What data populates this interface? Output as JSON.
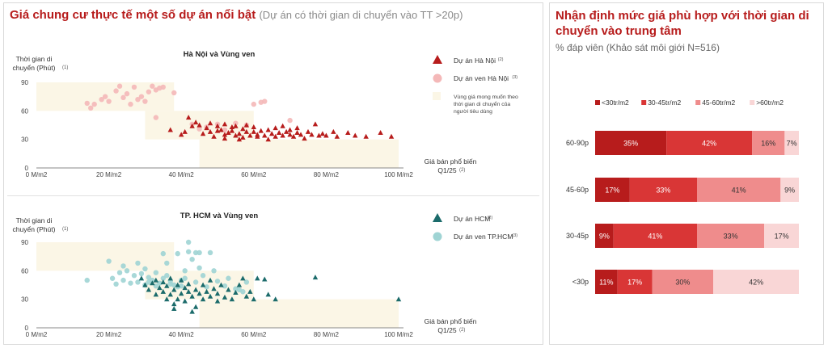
{
  "left": {
    "title": "Giá chung cư thực tế một số dự án nổi bật",
    "subtitle": "(Dự án có thời gian di chuyển vào TT >20p)"
  },
  "right": {
    "title": "Nhận định mức giá phù hợp với thời gian di chuyển vào trung tâm",
    "subtitle": "% đáp viên (Khảo sát môi giới N=516)"
  },
  "colors": {
    "hn_dark": "#b71c1c",
    "hn_light": "#f4b8b8",
    "hcm_dark": "#1b6b6b",
    "hcm_light": "#9fd4d4",
    "zone": "#fbf6e6",
    "seg1": "#b71c1c",
    "seg2": "#d93636",
    "seg3": "#ef8c8c",
    "seg4": "#f9d6d6"
  },
  "chart_data": [
    {
      "type": "scatter",
      "title": "Hà Nội và Vùng ven",
      "ylabel": "Thời gian di chuyển (Phút)",
      "ylabel_sup": "(1)",
      "xlabel": "Giá bán phổ biến Q1/25",
      "xlabel_sup": "(2)",
      "xlim": [
        0,
        100
      ],
      "ylim": [
        0,
        90
      ],
      "xticks": [
        0,
        20,
        40,
        60,
        80,
        100
      ],
      "xtick_labels": [
        "0 M/m2",
        "20 M/m2",
        "40 M/m2",
        "60 M/m2",
        "80 M/m2",
        "100 M/m2"
      ],
      "yticks": [
        0,
        30,
        60,
        90
      ],
      "zone_label": "Vùng giá mong muốn theo thời gian di chuyển của người tiêu dùng",
      "zones": [
        {
          "x": [
            0,
            38
          ],
          "y": [
            60,
            90
          ]
        },
        {
          "x": [
            30,
            60
          ],
          "y": [
            30,
            60
          ]
        },
        {
          "x": [
            45,
            100
          ],
          "y": [
            0,
            30
          ]
        }
      ],
      "series": [
        {
          "name": "Dự án Hà Nội",
          "sup": "(2)",
          "marker": "triangle",
          "points": [
            [
              37,
              40
            ],
            [
              40,
              35
            ],
            [
              41,
              38
            ],
            [
              42,
              53
            ],
            [
              43,
              44
            ],
            [
              44,
              48
            ],
            [
              45,
              45
            ],
            [
              46,
              36
            ],
            [
              47,
              42
            ],
            [
              48,
              38
            ],
            [
              48,
              47
            ],
            [
              49,
              33
            ],
            [
              50,
              44
            ],
            [
              50,
              39
            ],
            [
              51,
              40
            ],
            [
              52,
              35
            ],
            [
              52,
              46
            ],
            [
              53,
              37
            ],
            [
              54,
              39
            ],
            [
              54,
              43
            ],
            [
              55,
              34
            ],
            [
              55,
              44
            ],
            [
              56,
              36
            ],
            [
              57,
              41
            ],
            [
              57,
              32
            ],
            [
              58,
              45
            ],
            [
              58,
              38
            ],
            [
              59,
              34
            ],
            [
              60,
              38
            ],
            [
              60,
              43
            ],
            [
              61,
              35
            ],
            [
              61,
              33
            ],
            [
              62,
              39
            ],
            [
              63,
              34
            ],
            [
              64,
              40
            ],
            [
              64,
              30
            ],
            [
              65,
              36
            ],
            [
              66,
              42
            ],
            [
              66,
              33
            ],
            [
              67,
              37
            ],
            [
              68,
              44
            ],
            [
              68,
              34
            ],
            [
              69,
              38
            ],
            [
              70,
              35
            ],
            [
              70,
              40
            ],
            [
              71,
              33
            ],
            [
              72,
              37
            ],
            [
              72,
              42
            ],
            [
              73,
              35
            ],
            [
              74,
              31
            ],
            [
              75,
              38
            ],
            [
              76,
              35
            ],
            [
              77,
              46
            ],
            [
              78,
              34
            ],
            [
              79,
              36
            ],
            [
              80,
              34
            ],
            [
              82,
              38
            ],
            [
              83,
              33
            ],
            [
              86,
              37
            ],
            [
              88,
              34
            ],
            [
              91,
              33
            ],
            [
              95,
              37
            ],
            [
              98,
              33
            ],
            [
              52,
              31
            ],
            [
              56,
              30
            ]
          ]
        },
        {
          "name": "Dự án ven Hà Nội",
          "sup": "(3)",
          "marker": "circle",
          "points": [
            [
              14,
              68
            ],
            [
              15,
              63
            ],
            [
              16,
              67
            ],
            [
              18,
              72
            ],
            [
              19,
              75
            ],
            [
              20,
              70
            ],
            [
              22,
              81
            ],
            [
              23,
              86
            ],
            [
              24,
              74
            ],
            [
              25,
              78
            ],
            [
              26,
              67
            ],
            [
              27,
              85
            ],
            [
              28,
              72
            ],
            [
              29,
              75
            ],
            [
              30,
              70
            ],
            [
              31,
              80
            ],
            [
              32,
              86
            ],
            [
              33,
              82
            ],
            [
              34,
              84
            ],
            [
              35,
              85
            ],
            [
              38,
              79
            ],
            [
              60,
              67
            ],
            [
              62,
              69
            ],
            [
              63,
              70
            ],
            [
              70,
              50
            ],
            [
              43,
              46
            ],
            [
              45,
              41
            ],
            [
              47,
              43
            ],
            [
              50,
              46
            ],
            [
              55,
              47
            ],
            [
              58,
              45
            ],
            [
              33,
              53
            ],
            [
              52,
              40
            ]
          ]
        }
      ]
    },
    {
      "type": "scatter",
      "title": "TP. HCM và Vùng ven",
      "ylabel": "Thời gian di chuyển (Phút)",
      "ylabel_sup": "(1)",
      "xlabel": "Giá bán phổ biến Q1/25",
      "xlabel_sup": "(2)",
      "xlim": [
        0,
        100
      ],
      "ylim": [
        0,
        90
      ],
      "xticks": [
        0,
        20,
        40,
        60,
        80,
        100
      ],
      "xtick_labels": [
        "0 M/m2",
        "20 M/m2",
        "40 M/m2",
        "60 M/m2",
        "80 M/m2",
        "100 M/m2"
      ],
      "yticks": [
        0,
        30,
        60,
        90
      ],
      "zones": [
        {
          "x": [
            0,
            38
          ],
          "y": [
            60,
            90
          ]
        },
        {
          "x": [
            30,
            60
          ],
          "y": [
            30,
            60
          ]
        },
        {
          "x": [
            45,
            100
          ],
          "y": [
            0,
            30
          ]
        }
      ],
      "series": [
        {
          "name": "Dự án HCM",
          "sup": "(2)",
          "marker": "triangle",
          "points": [
            [
              29,
              52
            ],
            [
              30,
              45
            ],
            [
              31,
              40
            ],
            [
              32,
              47
            ],
            [
              33,
              35
            ],
            [
              33,
              50
            ],
            [
              34,
              42
            ],
            [
              35,
              38
            ],
            [
              35,
              48
            ],
            [
              36,
              30
            ],
            [
              36,
              44
            ],
            [
              37,
              35
            ],
            [
              37,
              52
            ],
            [
              38,
              40
            ],
            [
              38,
              25
            ],
            [
              39,
              45
            ],
            [
              39,
              30
            ],
            [
              40,
              36
            ],
            [
              40,
              50
            ],
            [
              41,
              42
            ],
            [
              41,
              28
            ],
            [
              42,
              38
            ],
            [
              42,
              46
            ],
            [
              43,
              33
            ],
            [
              44,
              40
            ],
            [
              44,
              22
            ],
            [
              45,
              36
            ],
            [
              46,
              45
            ],
            [
              46,
              30
            ],
            [
              47,
              38
            ],
            [
              48,
              33
            ],
            [
              48,
              50
            ],
            [
              49,
              41
            ],
            [
              50,
              28
            ],
            [
              50,
              36
            ],
            [
              51,
              45
            ],
            [
              52,
              32
            ],
            [
              53,
              40
            ],
            [
              54,
              30
            ],
            [
              55,
              37
            ],
            [
              56,
              45
            ],
            [
              57,
              52
            ],
            [
              58,
              33
            ],
            [
              59,
              38
            ],
            [
              60,
              30
            ],
            [
              61,
              52
            ],
            [
              63,
              51
            ],
            [
              64,
              35
            ],
            [
              66,
              30
            ],
            [
              77,
              53
            ],
            [
              100,
              30
            ],
            [
              38,
              20
            ],
            [
              43,
              17
            ]
          ]
        },
        {
          "name": "Dự án ven TP.HCM",
          "sup": "(3)",
          "marker": "circle",
          "points": [
            [
              14,
              50
            ],
            [
              20,
              70
            ],
            [
              21,
              52
            ],
            [
              22,
              46
            ],
            [
              23,
              58
            ],
            [
              24,
              65
            ],
            [
              24,
              50
            ],
            [
              25,
              60
            ],
            [
              26,
              47
            ],
            [
              27,
              55
            ],
            [
              28,
              68
            ],
            [
              28,
              48
            ],
            [
              29,
              57
            ],
            [
              30,
              62
            ],
            [
              30,
              45
            ],
            [
              31,
              53
            ],
            [
              31,
              48
            ],
            [
              32,
              50
            ],
            [
              33,
              58
            ],
            [
              33,
              44
            ],
            [
              34,
              47
            ],
            [
              35,
              52
            ],
            [
              35,
              78
            ],
            [
              36,
              55
            ],
            [
              37,
              49
            ],
            [
              37,
              46
            ],
            [
              38,
              45
            ],
            [
              39,
              43
            ],
            [
              40,
              44
            ],
            [
              40,
              50
            ],
            [
              41,
              60
            ],
            [
              42,
              80
            ],
            [
              43,
              72
            ],
            [
              44,
              79
            ],
            [
              45,
              79
            ],
            [
              46,
              55
            ],
            [
              47,
              43
            ],
            [
              48,
              79
            ],
            [
              49,
              60
            ],
            [
              50,
              49
            ],
            [
              52,
              44
            ],
            [
              53,
              52
            ],
            [
              55,
              41
            ],
            [
              56,
              40
            ],
            [
              57,
              38
            ],
            [
              58,
              48
            ],
            [
              44,
              48
            ],
            [
              36,
              68
            ],
            [
              39,
              78
            ],
            [
              42,
              90
            ],
            [
              45,
              63
            ],
            [
              41,
              52
            ]
          ]
        }
      ]
    },
    {
      "type": "bar",
      "stacked": true,
      "orientation": "horizontal",
      "categories": [
        "60-90p",
        "45-60p",
        "30-45p",
        "<30p"
      ],
      "series": [
        {
          "name": "<30tr/m2",
          "values": [
            35,
            17,
            9,
            11
          ]
        },
        {
          "name": "30-45tr/m2",
          "values": [
            42,
            33,
            41,
            17
          ]
        },
        {
          "name": "45-60tr/m2",
          "values": [
            16,
            41,
            33,
            30
          ]
        },
        {
          "name": ">60tr/m2",
          "values": [
            7,
            9,
            17,
            42
          ]
        }
      ],
      "value_labels": [
        [
          "35%",
          "42%",
          "16%",
          "7%"
        ],
        [
          "17%",
          "33%",
          "41%",
          "9%"
        ],
        [
          "9%",
          "41%",
          "33%",
          "17%"
        ],
        [
          "11%",
          "17%",
          "30%",
          "42%"
        ]
      ],
      "legend_position": "top",
      "xlim": [
        0,
        100
      ]
    }
  ]
}
